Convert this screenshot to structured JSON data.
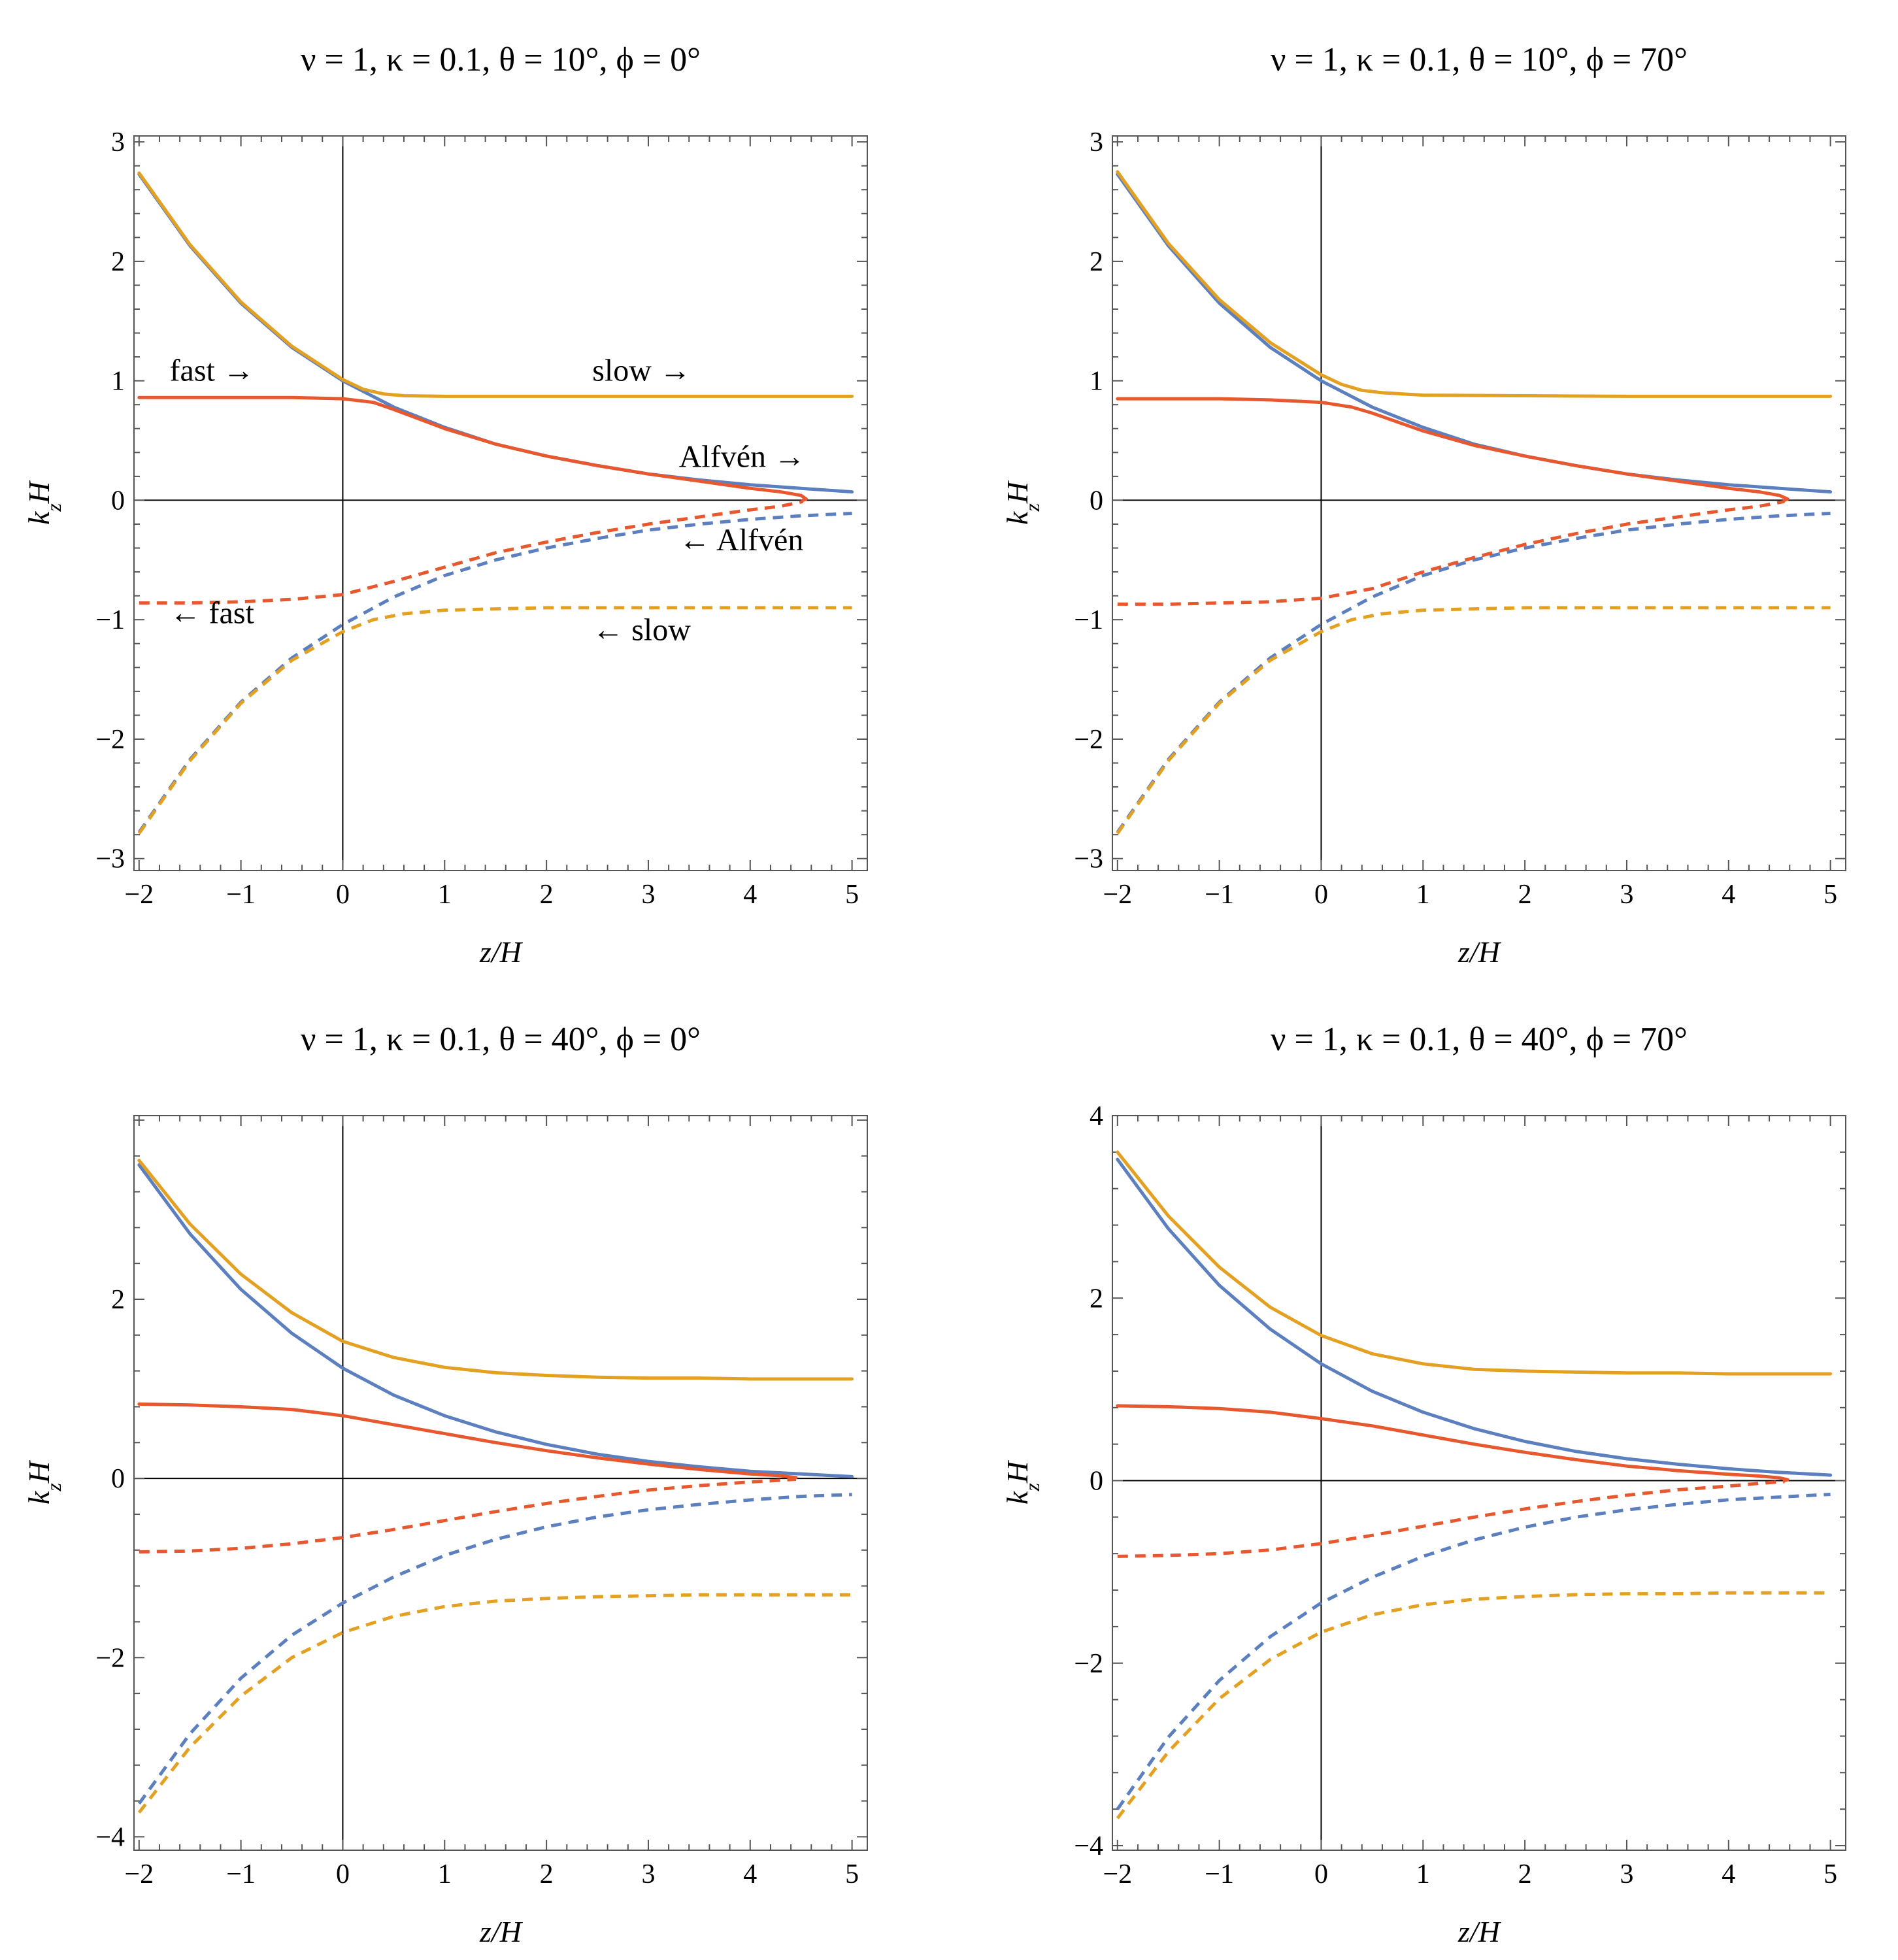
{
  "colors": {
    "alfven": "#5b7fbf",
    "fast": "#e8582f",
    "slow": "#e3a021",
    "axis": "#555555"
  },
  "chart_data": [
    {
      "type": "line",
      "title": "ν = 1,  κ = 0.1,  θ = 10°,  ϕ = 0°",
      "xlabel": "z/H",
      "ylabel": "k_zH",
      "xlim": [
        -2.05,
        5.15
      ],
      "ylim": [
        -3.1,
        3.05
      ],
      "xticks": [
        -2,
        -1,
        0,
        1,
        2,
        3,
        4,
        5
      ],
      "yticks": [
        -3,
        -2,
        -1,
        0,
        1,
        2,
        3
      ],
      "series": [
        {
          "key": "alfven",
          "style": "solid",
          "x": [
            -2,
            -1.5,
            -1,
            -0.5,
            0,
            0.5,
            1,
            1.5,
            2,
            2.5,
            3,
            3.5,
            4,
            4.5,
            5
          ],
          "y": [
            2.73,
            2.13,
            1.65,
            1.28,
            1.0,
            0.78,
            0.61,
            0.47,
            0.37,
            0.29,
            0.22,
            0.17,
            0.13,
            0.1,
            0.07
          ]
        },
        {
          "key": "fast",
          "style": "solid",
          "x": [
            -2,
            -1.5,
            -1,
            -0.5,
            0,
            0.3,
            0.5,
            1,
            1.5,
            2,
            2.5,
            3,
            3.5,
            4,
            4.3,
            4.5,
            4.55,
            4.52
          ],
          "y": [
            0.86,
            0.86,
            0.86,
            0.86,
            0.85,
            0.82,
            0.76,
            0.6,
            0.47,
            0.37,
            0.29,
            0.22,
            0.16,
            0.1,
            0.07,
            0.04,
            0.01,
            0.0
          ]
        },
        {
          "key": "slow",
          "style": "solid",
          "x": [
            -2,
            -1.5,
            -1,
            -0.5,
            0,
            0.2,
            0.4,
            0.6,
            1,
            2,
            3,
            4,
            5
          ],
          "y": [
            2.74,
            2.14,
            1.66,
            1.29,
            1.01,
            0.93,
            0.89,
            0.875,
            0.87,
            0.87,
            0.87,
            0.87,
            0.87
          ]
        },
        {
          "key": "alfven",
          "style": "dashed",
          "x": [
            -2,
            -1.5,
            -1,
            -0.5,
            0,
            0.5,
            1,
            1.5,
            2,
            2.5,
            3,
            3.5,
            4,
            4.5,
            5
          ],
          "y": [
            -2.78,
            -2.17,
            -1.69,
            -1.32,
            -1.04,
            -0.81,
            -0.63,
            -0.5,
            -0.4,
            -0.32,
            -0.25,
            -0.2,
            -0.16,
            -0.13,
            -0.11
          ]
        },
        {
          "key": "fast",
          "style": "dashed",
          "x": [
            -2,
            -1.5,
            -1,
            -0.5,
            0,
            0.5,
            1,
            1.5,
            2,
            2.5,
            3,
            3.5,
            4,
            4.3,
            4.52
          ],
          "y": [
            -0.86,
            -0.86,
            -0.85,
            -0.83,
            -0.79,
            -0.68,
            -0.56,
            -0.44,
            -0.35,
            -0.27,
            -0.2,
            -0.14,
            -0.08,
            -0.05,
            -0.01
          ]
        },
        {
          "key": "slow",
          "style": "dashed",
          "x": [
            -2,
            -1.5,
            -1,
            -0.5,
            0,
            0.3,
            0.6,
            1,
            1.5,
            2,
            3,
            4,
            5
          ],
          "y": [
            -2.79,
            -2.18,
            -1.7,
            -1.34,
            -1.1,
            -1.0,
            -0.95,
            -0.92,
            -0.91,
            -0.9,
            -0.9,
            -0.9,
            -0.9
          ]
        }
      ],
      "annotations": [
        {
          "text": "fast →",
          "x": -1.7,
          "y": 1.0
        },
        {
          "text": "slow →",
          "x": 2.45,
          "y": 1.0
        },
        {
          "text": "Alfvén →",
          "x": 3.3,
          "y": 0.28
        },
        {
          "text": "← Alfvén",
          "x": 3.3,
          "y": -0.42
        },
        {
          "text": "← fast",
          "x": -1.7,
          "y": -1.03
        },
        {
          "text": "← slow",
          "x": 2.45,
          "y": -1.17
        }
      ]
    },
    {
      "type": "line",
      "title": "ν = 1,  κ = 0.1,  θ = 10°,  ϕ = 70°",
      "xlabel": "z/H",
      "ylabel": "k_zH",
      "xlim": [
        -2.05,
        5.15
      ],
      "ylim": [
        -3.1,
        3.05
      ],
      "xticks": [
        -2,
        -1,
        0,
        1,
        2,
        3,
        4,
        5
      ],
      "yticks": [
        -3,
        -2,
        -1,
        0,
        1,
        2,
        3
      ],
      "series": [
        {
          "key": "alfven",
          "style": "solid",
          "x": [
            -2,
            -1.5,
            -1,
            -0.5,
            0,
            0.5,
            1,
            1.5,
            2,
            2.5,
            3,
            3.5,
            4,
            4.5,
            5
          ],
          "y": [
            2.73,
            2.13,
            1.65,
            1.28,
            1.0,
            0.78,
            0.61,
            0.47,
            0.37,
            0.29,
            0.22,
            0.17,
            0.13,
            0.1,
            0.07
          ]
        },
        {
          "key": "fast",
          "style": "solid",
          "x": [
            -2,
            -1.5,
            -1,
            -0.5,
            0,
            0.3,
            0.5,
            0.8,
            1,
            1.5,
            2,
            2.5,
            3,
            3.5,
            4,
            4.3,
            4.5,
            4.58,
            4.55
          ],
          "y": [
            0.85,
            0.85,
            0.85,
            0.84,
            0.82,
            0.78,
            0.73,
            0.64,
            0.58,
            0.46,
            0.37,
            0.29,
            0.22,
            0.16,
            0.1,
            0.07,
            0.04,
            0.01,
            0.0
          ]
        },
        {
          "key": "slow",
          "style": "solid",
          "x": [
            -2,
            -1.5,
            -1,
            -0.5,
            0,
            0.2,
            0.4,
            0.6,
            1,
            2,
            3,
            4,
            5
          ],
          "y": [
            2.75,
            2.15,
            1.68,
            1.32,
            1.05,
            0.97,
            0.92,
            0.9,
            0.88,
            0.875,
            0.87,
            0.87,
            0.87
          ]
        },
        {
          "key": "alfven",
          "style": "dashed",
          "x": [
            -2,
            -1.5,
            -1,
            -0.5,
            0,
            0.5,
            1,
            1.5,
            2,
            2.5,
            3,
            3.5,
            4,
            4.5,
            5
          ],
          "y": [
            -2.78,
            -2.17,
            -1.69,
            -1.32,
            -1.04,
            -0.81,
            -0.63,
            -0.5,
            -0.4,
            -0.32,
            -0.25,
            -0.2,
            -0.16,
            -0.13,
            -0.11
          ]
        },
        {
          "key": "fast",
          "style": "dashed",
          "x": [
            -2,
            -1.5,
            -1,
            -0.5,
            0,
            0.5,
            1,
            1.5,
            2,
            2.5,
            3,
            3.5,
            4,
            4.3,
            4.55
          ],
          "y": [
            -0.87,
            -0.87,
            -0.86,
            -0.85,
            -0.82,
            -0.74,
            -0.6,
            -0.48,
            -0.37,
            -0.28,
            -0.2,
            -0.14,
            -0.08,
            -0.05,
            -0.01
          ]
        },
        {
          "key": "slow",
          "style": "dashed",
          "x": [
            -2,
            -1.5,
            -1,
            -0.5,
            0,
            0.3,
            0.6,
            1,
            1.5,
            2,
            3,
            4,
            5
          ],
          "y": [
            -2.79,
            -2.18,
            -1.7,
            -1.34,
            -1.1,
            -1.0,
            -0.95,
            -0.92,
            -0.91,
            -0.9,
            -0.9,
            -0.9,
            -0.9
          ]
        }
      ],
      "annotations": []
    },
    {
      "type": "line",
      "title": "ν = 1,  κ = 0.1,  θ = 40°,  ϕ = 0°",
      "xlabel": "z/H",
      "ylabel": "k_zH",
      "xlim": [
        -2.05,
        5.15
      ],
      "ylim": [
        -4.15,
        4.05
      ],
      "xticks": [
        -2,
        -1,
        0,
        1,
        2,
        3,
        4,
        5
      ],
      "yticks": [
        -4,
        -2,
        0,
        2
      ],
      "series": [
        {
          "key": "alfven",
          "style": "solid",
          "x": [
            -2,
            -1.5,
            -1,
            -0.5,
            0,
            0.5,
            1,
            1.5,
            2,
            2.5,
            3,
            3.5,
            4,
            4.5,
            5
          ],
          "y": [
            3.5,
            2.73,
            2.11,
            1.62,
            1.23,
            0.93,
            0.7,
            0.52,
            0.38,
            0.27,
            0.19,
            0.13,
            0.08,
            0.05,
            0.02
          ]
        },
        {
          "key": "fast",
          "style": "solid",
          "x": [
            -2,
            -1.5,
            -1,
            -0.5,
            0,
            0.5,
            1,
            1.5,
            2,
            2.5,
            3,
            3.5,
            4,
            4.3,
            4.45,
            4.42
          ],
          "y": [
            0.83,
            0.82,
            0.8,
            0.77,
            0.7,
            0.6,
            0.5,
            0.4,
            0.31,
            0.23,
            0.16,
            0.1,
            0.05,
            0.03,
            0.01,
            0.0
          ]
        },
        {
          "key": "slow",
          "style": "solid",
          "x": [
            -2,
            -1.5,
            -1,
            -0.5,
            0,
            0.5,
            1,
            1.5,
            2,
            2.5,
            3,
            3.5,
            4,
            4.5,
            5
          ],
          "y": [
            3.55,
            2.84,
            2.28,
            1.85,
            1.53,
            1.35,
            1.24,
            1.18,
            1.15,
            1.13,
            1.12,
            1.12,
            1.11,
            1.11,
            1.11
          ]
        },
        {
          "key": "alfven",
          "style": "dashed",
          "x": [
            -2,
            -1.5,
            -1,
            -0.5,
            0,
            0.5,
            1,
            1.5,
            2,
            2.5,
            3,
            3.5,
            4,
            4.5,
            5
          ],
          "y": [
            -3.63,
            -2.85,
            -2.23,
            -1.75,
            -1.39,
            -1.1,
            -0.86,
            -0.68,
            -0.54,
            -0.43,
            -0.35,
            -0.29,
            -0.24,
            -0.2,
            -0.18
          ]
        },
        {
          "key": "fast",
          "style": "dashed",
          "x": [
            -2,
            -1.5,
            -1,
            -0.5,
            0,
            0.5,
            1,
            1.5,
            2,
            2.5,
            3,
            3.5,
            4,
            4.3,
            4.45
          ],
          "y": [
            -0.82,
            -0.81,
            -0.78,
            -0.73,
            -0.66,
            -0.57,
            -0.47,
            -0.37,
            -0.28,
            -0.2,
            -0.13,
            -0.08,
            -0.04,
            -0.02,
            -0.01
          ]
        },
        {
          "key": "slow",
          "style": "dashed",
          "x": [
            -2,
            -1.5,
            -1,
            -0.5,
            0,
            0.5,
            1,
            1.5,
            2,
            2.5,
            3,
            3.5,
            4,
            4.5,
            5
          ],
          "y": [
            -3.73,
            -3.0,
            -2.43,
            -2.0,
            -1.72,
            -1.54,
            -1.43,
            -1.37,
            -1.34,
            -1.32,
            -1.31,
            -1.3,
            -1.3,
            -1.3,
            -1.3
          ]
        }
      ],
      "annotations": []
    },
    {
      "type": "line",
      "title": "ν = 1,  κ = 0.1,  θ = 40°,  ϕ = 70°",
      "xlabel": "z/H",
      "ylabel": "k_zH",
      "xlim": [
        -2.05,
        5.15
      ],
      "ylim": [
        -4.05,
        4.0
      ],
      "xticks": [
        -2,
        -1,
        0,
        1,
        2,
        3,
        4,
        5
      ],
      "yticks": [
        -4,
        -2,
        0,
        2,
        4
      ],
      "series": [
        {
          "key": "alfven",
          "style": "solid",
          "x": [
            -2,
            -1.5,
            -1,
            -0.5,
            0,
            0.5,
            1,
            1.5,
            2,
            2.5,
            3,
            3.5,
            4,
            4.5,
            5
          ],
          "y": [
            3.52,
            2.76,
            2.14,
            1.66,
            1.28,
            0.98,
            0.75,
            0.57,
            0.43,
            0.32,
            0.24,
            0.18,
            0.13,
            0.09,
            0.06
          ]
        },
        {
          "key": "fast",
          "style": "solid",
          "x": [
            -2,
            -1.5,
            -1,
            -0.5,
            0,
            0.5,
            1,
            1.5,
            2,
            2.5,
            3,
            3.5,
            4,
            4.3,
            4.5,
            4.58,
            4.55
          ],
          "y": [
            0.82,
            0.81,
            0.79,
            0.75,
            0.68,
            0.6,
            0.5,
            0.4,
            0.31,
            0.23,
            0.16,
            0.11,
            0.07,
            0.05,
            0.03,
            0.01,
            0.0
          ]
        },
        {
          "key": "slow",
          "style": "solid",
          "x": [
            -2,
            -1.5,
            -1,
            -0.5,
            0,
            0.5,
            1,
            1.5,
            2,
            2.5,
            3,
            3.5,
            4,
            4.5,
            5
          ],
          "y": [
            3.6,
            2.9,
            2.34,
            1.9,
            1.59,
            1.39,
            1.28,
            1.22,
            1.2,
            1.19,
            1.18,
            1.18,
            1.17,
            1.17,
            1.17
          ]
        },
        {
          "key": "alfven",
          "style": "dashed",
          "x": [
            -2,
            -1.5,
            -1,
            -0.5,
            0,
            0.5,
            1,
            1.5,
            2,
            2.5,
            3,
            3.5,
            4,
            4.5,
            5
          ],
          "y": [
            -3.6,
            -2.81,
            -2.19,
            -1.71,
            -1.34,
            -1.06,
            -0.83,
            -0.65,
            -0.51,
            -0.4,
            -0.32,
            -0.26,
            -0.21,
            -0.18,
            -0.15
          ]
        },
        {
          "key": "fast",
          "style": "dashed",
          "x": [
            -2,
            -1.5,
            -1,
            -0.5,
            0,
            0.5,
            1,
            1.5,
            2,
            2.5,
            3,
            3.5,
            4,
            4.3,
            4.55
          ],
          "y": [
            -0.83,
            -0.82,
            -0.8,
            -0.76,
            -0.69,
            -0.6,
            -0.5,
            -0.4,
            -0.31,
            -0.23,
            -0.16,
            -0.1,
            -0.06,
            -0.03,
            -0.01
          ]
        },
        {
          "key": "slow",
          "style": "dashed",
          "x": [
            -2,
            -1.5,
            -1,
            -0.5,
            0,
            0.5,
            1,
            1.5,
            2,
            2.5,
            3,
            3.5,
            4,
            4.5,
            5
          ],
          "y": [
            -3.7,
            -2.97,
            -2.39,
            -1.96,
            -1.66,
            -1.47,
            -1.36,
            -1.3,
            -1.27,
            -1.25,
            -1.24,
            -1.24,
            -1.23,
            -1.23,
            -1.23
          ]
        }
      ],
      "annotations": []
    }
  ]
}
